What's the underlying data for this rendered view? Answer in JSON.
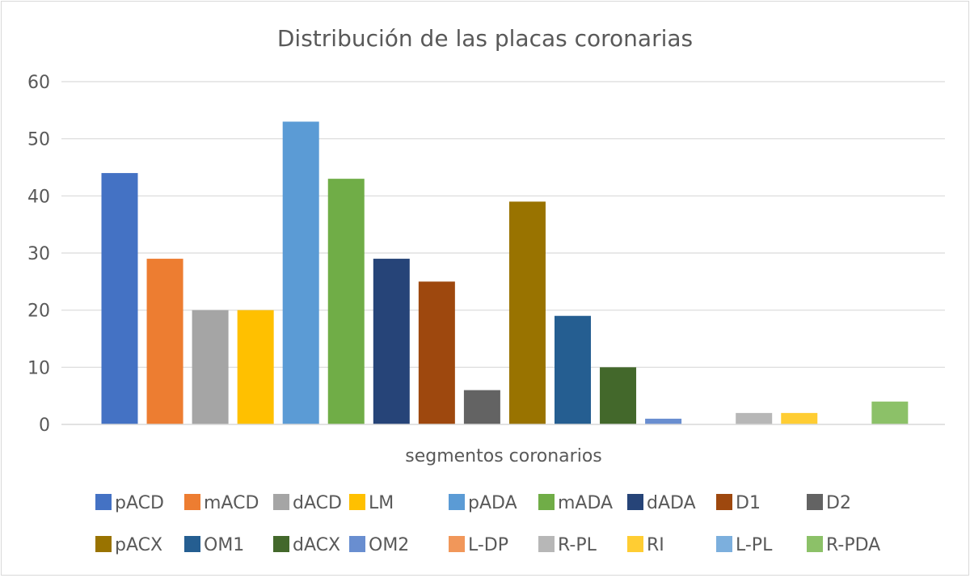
{
  "chart_data": {
    "type": "bar",
    "title": "Distribución de las placas coronarias",
    "xlabel": "segmentos coronarios",
    "ylabel": "",
    "ylim": [
      0,
      60
    ],
    "yticks": [
      "0",
      "10",
      "20",
      "30",
      "40",
      "50",
      "60"
    ],
    "grid": true,
    "legend_position": "bottom",
    "series": [
      {
        "name": "pACD",
        "value": 44,
        "color": "#4472C4"
      },
      {
        "name": "mACD",
        "value": 29,
        "color": "#ED7D31"
      },
      {
        "name": "dACD",
        "value": 20,
        "color": "#A5A5A5"
      },
      {
        "name": "LM",
        "value": 20,
        "color": "#FFC000"
      },
      {
        "name": "pADA",
        "value": 53,
        "color": "#5B9BD5"
      },
      {
        "name": "mADA",
        "value": 43,
        "color": "#70AD47"
      },
      {
        "name": "dADA",
        "value": 29,
        "color": "#264478"
      },
      {
        "name": "D1",
        "value": 25,
        "color": "#9E480E"
      },
      {
        "name": "D2",
        "value": 6,
        "color": "#636363"
      },
      {
        "name": "pACX",
        "value": 39,
        "color": "#997300"
      },
      {
        "name": "OM1",
        "value": 19,
        "color": "#255E91"
      },
      {
        "name": "dACX",
        "value": 10,
        "color": "#43682B"
      },
      {
        "name": "OM2",
        "value": 1,
        "color": "#698ED0"
      },
      {
        "name": "L-DP",
        "value": 0,
        "color": "#F1975A"
      },
      {
        "name": "R-PL",
        "value": 2,
        "color": "#B7B7B7"
      },
      {
        "name": "RI",
        "value": 2,
        "color": "#FFCD33"
      },
      {
        "name": "L-PL",
        "value": 0,
        "color": "#7CAFDD"
      },
      {
        "name": "R-PDA",
        "value": 4,
        "color": "#8CC168"
      }
    ]
  }
}
